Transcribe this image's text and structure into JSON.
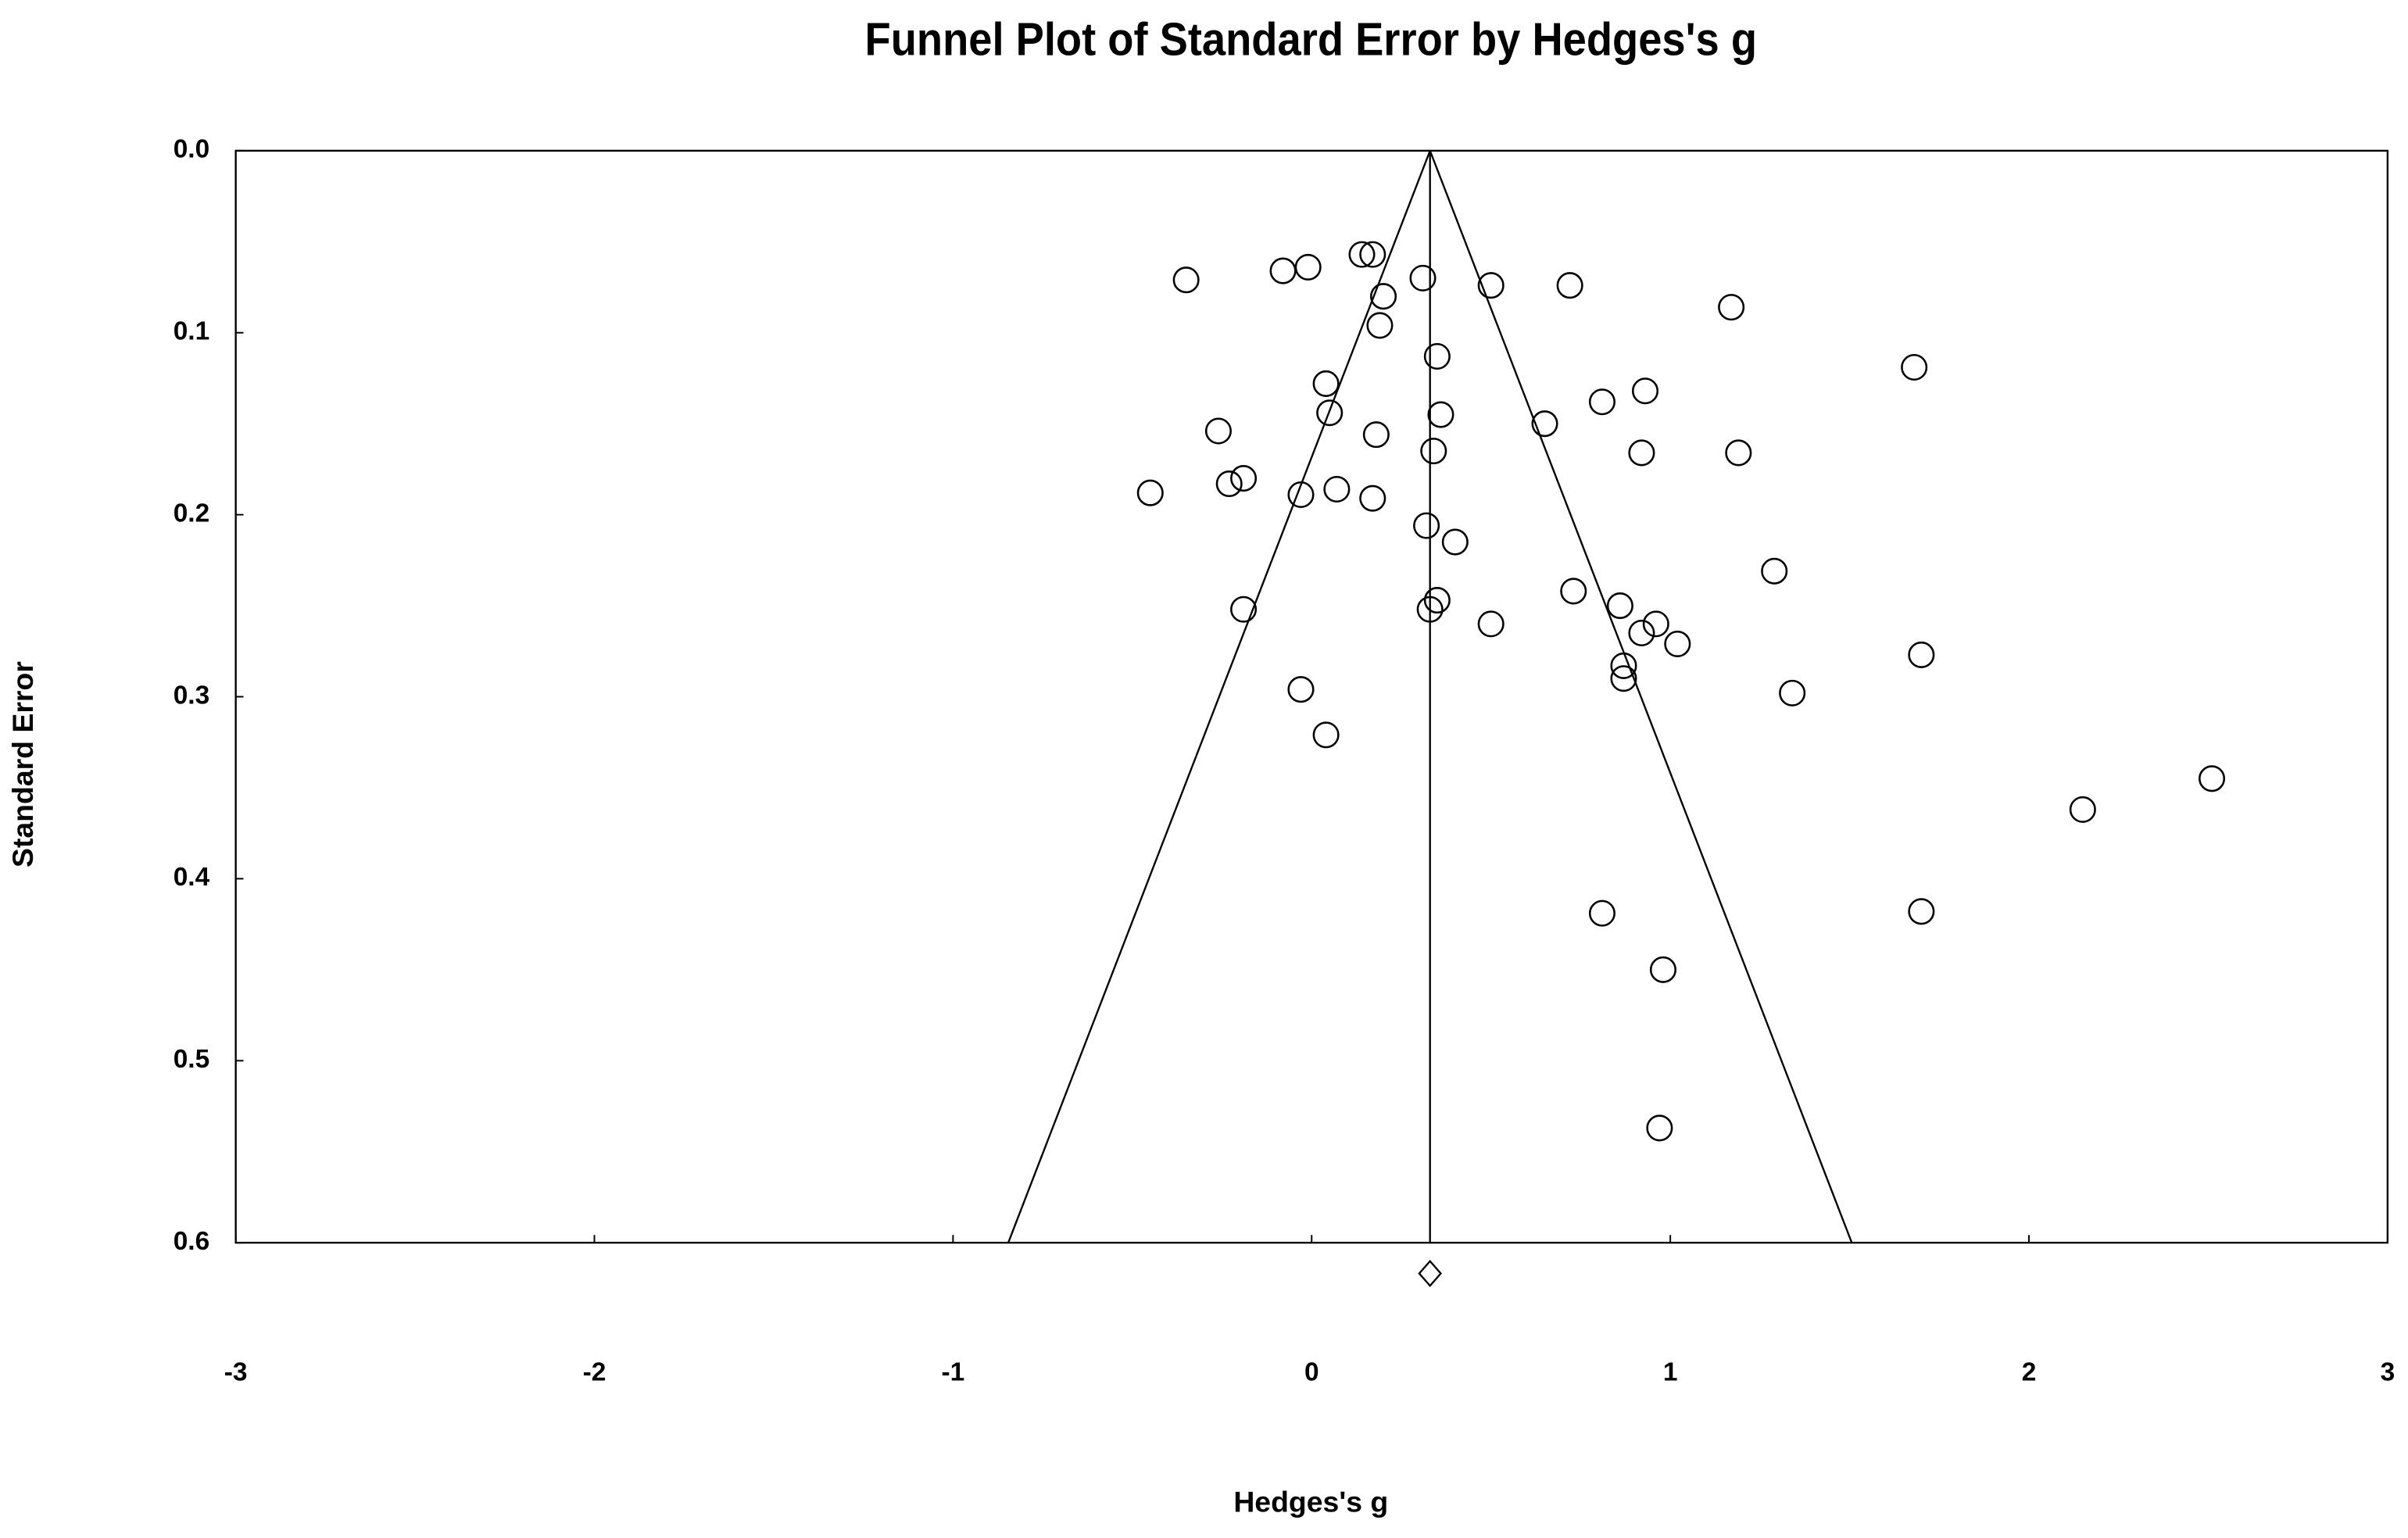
{
  "chart_data": {
    "type": "scatter",
    "title": "Funnel Plot of Standard Error by Hedges's g",
    "xlabel": "Hedges's g",
    "ylabel": "Standard Error",
    "x": [
      -0.35,
      -0.08,
      -0.01,
      0.14,
      0.17,
      0.31,
      0.2,
      0.19,
      0.5,
      0.72,
      1.17,
      0.35,
      1.68,
      0.04,
      0.05,
      0.93,
      0.81,
      0.36,
      0.65,
      -0.26,
      0.18,
      0.34,
      0.92,
      1.19,
      -0.45,
      -0.23,
      -0.19,
      -0.03,
      0.07,
      0.17,
      0.32,
      0.4,
      1.29,
      0.73,
      -0.19,
      0.33,
      0.35,
      0.86,
      0.5,
      0.96,
      0.92,
      1.02,
      1.7,
      0.87,
      0.87,
      1.34,
      -0.03,
      0.04,
      2.51,
      2.15,
      0.81,
      1.7,
      0.98,
      0.97
    ],
    "values": [
      0.071,
      0.066,
      0.064,
      0.057,
      0.057,
      0.07,
      0.08,
      0.096,
      0.074,
      0.074,
      0.086,
      0.113,
      0.119,
      0.128,
      0.144,
      0.132,
      0.138,
      0.145,
      0.15,
      0.154,
      0.156,
      0.165,
      0.166,
      0.166,
      0.188,
      0.183,
      0.18,
      0.189,
      0.186,
      0.191,
      0.206,
      0.215,
      0.231,
      0.242,
      0.252,
      0.252,
      0.247,
      0.25,
      0.26,
      0.26,
      0.265,
      0.271,
      0.277,
      0.283,
      0.29,
      0.298,
      0.296,
      0.321,
      0.345,
      0.362,
      0.419,
      0.418,
      0.45,
      0.537
    ],
    "summary_effect": 0.33,
    "funnel_z": 1.96,
    "xlim": [
      -3,
      3
    ],
    "xticks": [
      -3,
      -2,
      -1,
      0,
      1,
      2,
      3
    ],
    "ylim": [
      0,
      0.6
    ],
    "y_inverted": true,
    "yticks": [
      {
        "value": 0,
        "label": "0.0"
      },
      0.1,
      0.2,
      0.3,
      0.4,
      0.5,
      0.6
    ],
    "grid": false,
    "color": "#000000"
  }
}
